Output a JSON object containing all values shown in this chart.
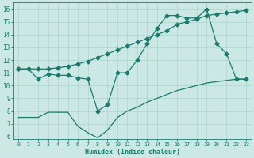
{
  "title": "",
  "xlabel": "Humidex (Indice chaleur)",
  "bg_color": "#cce8e4",
  "line_color": "#1a7a6e",
  "grid_color": "#aad4ce",
  "xlim": [
    -0.5,
    23.5
  ],
  "ylim": [
    5.8,
    16.5
  ],
  "xticks": [
    0,
    1,
    2,
    3,
    4,
    5,
    6,
    7,
    8,
    9,
    10,
    11,
    12,
    13,
    14,
    15,
    16,
    17,
    18,
    19,
    20,
    21,
    22,
    23
  ],
  "yticks": [
    6,
    7,
    8,
    9,
    10,
    11,
    12,
    13,
    14,
    15,
    16
  ],
  "line1_x": [
    0,
    1,
    2,
    3,
    4,
    5,
    6,
    7,
    8,
    9,
    10,
    11,
    12,
    13,
    14,
    15,
    16,
    17,
    18,
    19,
    20,
    21,
    22,
    23
  ],
  "line1_y": [
    11.3,
    11.3,
    10.5,
    10.9,
    10.8,
    10.8,
    10.6,
    10.5,
    8.0,
    8.5,
    11.0,
    11.0,
    12.0,
    13.3,
    14.5,
    15.5,
    15.5,
    15.3,
    15.3,
    16.0,
    13.3,
    12.5,
    10.5,
    10.5
  ],
  "line2_x": [
    0,
    1,
    2,
    3,
    4,
    5,
    6,
    7,
    8,
    9,
    10,
    11,
    12,
    13,
    14,
    15,
    16,
    17,
    18,
    19,
    20,
    21,
    22,
    23
  ],
  "line2_y": [
    11.3,
    11.3,
    11.3,
    11.3,
    11.4,
    11.5,
    11.7,
    11.9,
    12.2,
    12.5,
    12.8,
    13.1,
    13.4,
    13.7,
    14.0,
    14.3,
    14.8,
    15.0,
    15.2,
    15.5,
    15.6,
    15.7,
    15.8,
    15.9
  ],
  "line3_x": [
    0,
    1,
    2,
    3,
    4,
    5,
    6,
    7,
    8,
    9,
    10,
    11,
    12,
    13,
    14,
    15,
    16,
    17,
    18,
    19,
    20,
    21,
    22,
    23
  ],
  "line3_y": [
    7.5,
    7.5,
    7.5,
    7.9,
    7.9,
    7.9,
    6.8,
    6.3,
    5.9,
    6.5,
    7.5,
    8.0,
    8.3,
    8.7,
    9.0,
    9.3,
    9.6,
    9.8,
    10.0,
    10.2,
    10.3,
    10.4,
    10.5,
    10.5
  ],
  "marker": "D",
  "marker_size": 2.5,
  "lw": 0.9
}
